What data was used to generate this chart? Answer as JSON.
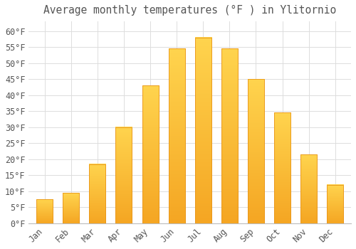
{
  "title": "Average monthly temperatures (°F ) in Ylitornio",
  "months": [
    "Jan",
    "Feb",
    "Mar",
    "Apr",
    "May",
    "Jun",
    "Jul",
    "Aug",
    "Sep",
    "Oct",
    "Nov",
    "Dec"
  ],
  "values": [
    7.5,
    9.5,
    18.5,
    30.0,
    43.0,
    54.5,
    58.0,
    54.5,
    45.0,
    34.5,
    21.5,
    12.0
  ],
  "bar_color_top": "#FFD44E",
  "bar_color_bottom": "#F5A623",
  "background_color": "#FFFFFF",
  "grid_color": "#DDDDDD",
  "text_color": "#555555",
  "ylim": [
    0,
    63
  ],
  "yticks": [
    0,
    5,
    10,
    15,
    20,
    25,
    30,
    35,
    40,
    45,
    50,
    55,
    60
  ],
  "title_fontsize": 10.5,
  "tick_fontsize": 8.5,
  "font_family": "monospace",
  "bar_width": 0.62
}
